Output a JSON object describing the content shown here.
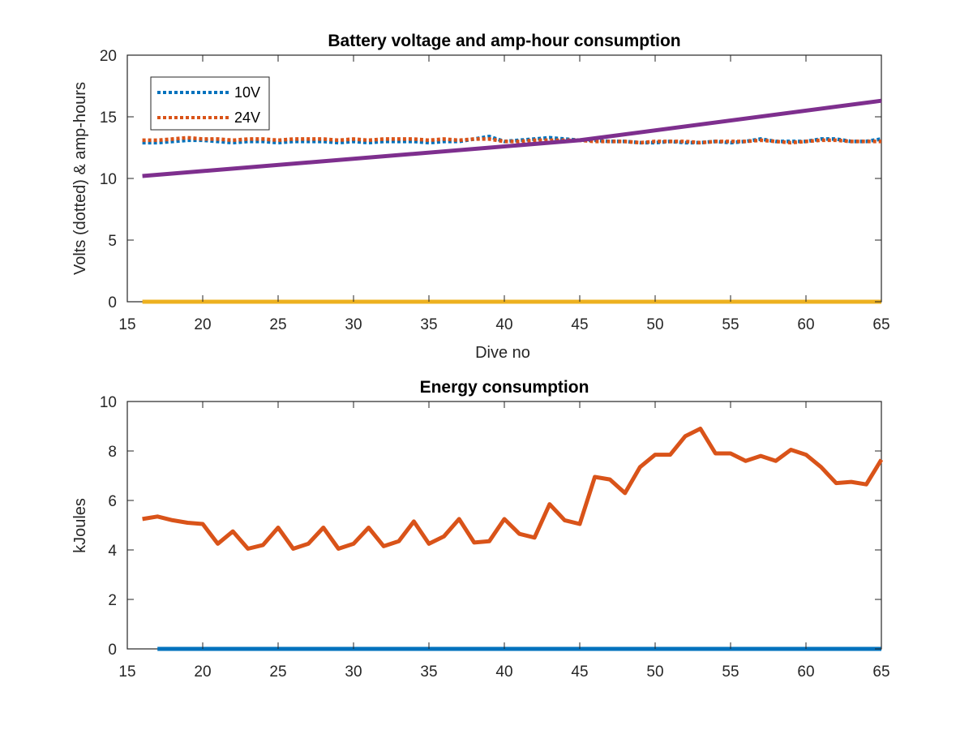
{
  "chart_data": [
    {
      "type": "line",
      "title": "Battery voltage and amp-hour consumption",
      "xlabel": "Dive no",
      "ylabel": "Volts (dotted) & amp-hours",
      "xlim": [
        15,
        65
      ],
      "ylim": [
        0,
        20
      ],
      "xticks": [
        15,
        20,
        25,
        30,
        35,
        40,
        45,
        50,
        55,
        60,
        65
      ],
      "yticks": [
        0,
        5,
        10,
        15,
        20
      ],
      "grid": false,
      "legend_position": "top-left",
      "series": [
        {
          "name": "10V",
          "style": "dotted",
          "color": "#0072BD",
          "x": [
            16,
            17,
            18,
            19,
            20,
            21,
            22,
            23,
            24,
            25,
            26,
            27,
            28,
            29,
            30,
            31,
            32,
            33,
            34,
            35,
            36,
            37,
            38,
            39,
            40,
            41,
            42,
            43,
            44,
            45,
            46,
            47,
            48,
            49,
            50,
            51,
            52,
            53,
            54,
            55,
            56,
            57,
            58,
            59,
            60,
            61,
            62,
            63,
            64,
            65
          ],
          "y": [
            12.9,
            12.9,
            13.0,
            13.1,
            13.1,
            13.0,
            12.9,
            13.0,
            13.0,
            12.9,
            13.0,
            13.0,
            13.0,
            12.9,
            13.0,
            12.9,
            13.0,
            13.0,
            13.0,
            12.9,
            13.0,
            13.0,
            13.2,
            13.4,
            13.0,
            13.1,
            13.2,
            13.3,
            13.2,
            13.1,
            13.1,
            13.0,
            13.0,
            12.9,
            12.9,
            13.0,
            12.9,
            12.9,
            13.0,
            12.9,
            13.0,
            13.2,
            13.0,
            13.0,
            13.0,
            13.2,
            13.2,
            13.0,
            13.0,
            13.2
          ]
        },
        {
          "name": "24V",
          "style": "dotted",
          "color": "#D95319",
          "x": [
            16,
            17,
            18,
            19,
            20,
            21,
            22,
            23,
            24,
            25,
            26,
            27,
            28,
            29,
            30,
            31,
            32,
            33,
            34,
            35,
            36,
            37,
            38,
            39,
            40,
            41,
            42,
            43,
            44,
            45,
            46,
            47,
            48,
            49,
            50,
            51,
            52,
            53,
            54,
            55,
            56,
            57,
            58,
            59,
            60,
            61,
            62,
            63,
            64,
            65
          ],
          "y": [
            13.1,
            13.1,
            13.2,
            13.3,
            13.2,
            13.2,
            13.1,
            13.2,
            13.2,
            13.1,
            13.2,
            13.2,
            13.2,
            13.1,
            13.2,
            13.1,
            13.2,
            13.2,
            13.2,
            13.1,
            13.2,
            13.1,
            13.2,
            13.2,
            13.0,
            13.0,
            13.1,
            13.1,
            13.1,
            13.1,
            13.0,
            13.0,
            13.0,
            12.9,
            13.0,
            13.0,
            13.0,
            12.9,
            13.0,
            13.0,
            13.0,
            13.1,
            13.0,
            12.9,
            13.0,
            13.1,
            13.1,
            13.0,
            13.0,
            13.0
          ]
        },
        {
          "style": "solid",
          "color": "#7E2F8E",
          "x": [
            16,
            45,
            65
          ],
          "y": [
            10.2,
            13.1,
            16.3
          ]
        },
        {
          "style": "solid",
          "color": "#EDB120",
          "x": [
            16,
            65
          ],
          "y": [
            0,
            0
          ]
        }
      ]
    },
    {
      "type": "line",
      "title": "Energy consumption",
      "xlabel": "",
      "ylabel": "kJoules",
      "xlim": [
        15,
        65
      ],
      "ylim": [
        0,
        10
      ],
      "xticks": [
        15,
        20,
        25,
        30,
        35,
        40,
        45,
        50,
        55,
        60,
        65
      ],
      "yticks": [
        0,
        2,
        4,
        6,
        8,
        10
      ],
      "grid": false,
      "series": [
        {
          "style": "solid",
          "color": "#D95319",
          "x": [
            16,
            17,
            18,
            19,
            20,
            21,
            22,
            23,
            24,
            25,
            26,
            27,
            28,
            29,
            30,
            31,
            32,
            33,
            34,
            35,
            36,
            37,
            38,
            39,
            40,
            41,
            42,
            43,
            44,
            45,
            46,
            47,
            48,
            49,
            50,
            51,
            52,
            53,
            54,
            55,
            56,
            57,
            58,
            59,
            60,
            61,
            62,
            63,
            64,
            65
          ],
          "y": [
            5.25,
            5.35,
            5.2,
            5.1,
            5.05,
            4.25,
            4.75,
            4.05,
            4.2,
            4.9,
            4.05,
            4.25,
            4.9,
            4.05,
            4.25,
            4.9,
            4.15,
            4.35,
            5.15,
            4.25,
            4.55,
            5.25,
            4.3,
            4.35,
            5.25,
            4.65,
            4.5,
            5.85,
            5.2,
            5.05,
            6.95,
            6.85,
            6.3,
            7.35,
            7.85,
            7.85,
            8.6,
            8.9,
            7.9,
            7.9,
            7.6,
            7.8,
            7.6,
            8.05,
            7.85,
            7.35,
            6.7,
            6.75,
            6.65,
            7.65
          ]
        },
        {
          "style": "solid",
          "color": "#0072BD",
          "x": [
            17,
            65
          ],
          "y": [
            0,
            0
          ]
        }
      ]
    }
  ]
}
